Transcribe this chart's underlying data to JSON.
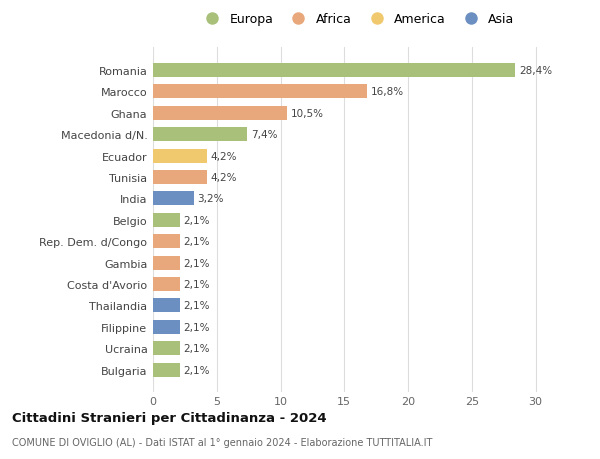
{
  "countries": [
    "Bulgaria",
    "Ucraina",
    "Filippine",
    "Thailandia",
    "Costa d'Avorio",
    "Gambia",
    "Rep. Dem. d/Congo",
    "Belgio",
    "India",
    "Tunisia",
    "Ecuador",
    "Macedonia d/N.",
    "Ghana",
    "Marocco",
    "Romania"
  ],
  "values": [
    2.1,
    2.1,
    2.1,
    2.1,
    2.1,
    2.1,
    2.1,
    2.1,
    3.2,
    4.2,
    4.2,
    7.4,
    10.5,
    16.8,
    28.4
  ],
  "labels": [
    "2,1%",
    "2,1%",
    "2,1%",
    "2,1%",
    "2,1%",
    "2,1%",
    "2,1%",
    "2,1%",
    "3,2%",
    "4,2%",
    "4,2%",
    "7,4%",
    "10,5%",
    "16,8%",
    "28,4%"
  ],
  "continents": [
    "Europa",
    "Europa",
    "Asia",
    "Asia",
    "Africa",
    "Africa",
    "Africa",
    "Europa",
    "Asia",
    "Africa",
    "America",
    "Europa",
    "Africa",
    "Africa",
    "Europa"
  ],
  "colors": {
    "Europa": "#a8c07a",
    "Africa": "#e8a87c",
    "America": "#f0c96e",
    "Asia": "#6b8fc0"
  },
  "legend_order": [
    "Europa",
    "Africa",
    "America",
    "Asia"
  ],
  "title": "Cittadini Stranieri per Cittadinanza - 2024",
  "subtitle": "COMUNE DI OVIGLIO (AL) - Dati ISTAT al 1° gennaio 2024 - Elaborazione TUTTITALIA.IT",
  "xlim": [
    0,
    32
  ],
  "xticks": [
    0,
    5,
    10,
    15,
    20,
    25,
    30
  ],
  "bg_color": "#ffffff",
  "grid_color": "#dddddd",
  "bar_height": 0.65
}
